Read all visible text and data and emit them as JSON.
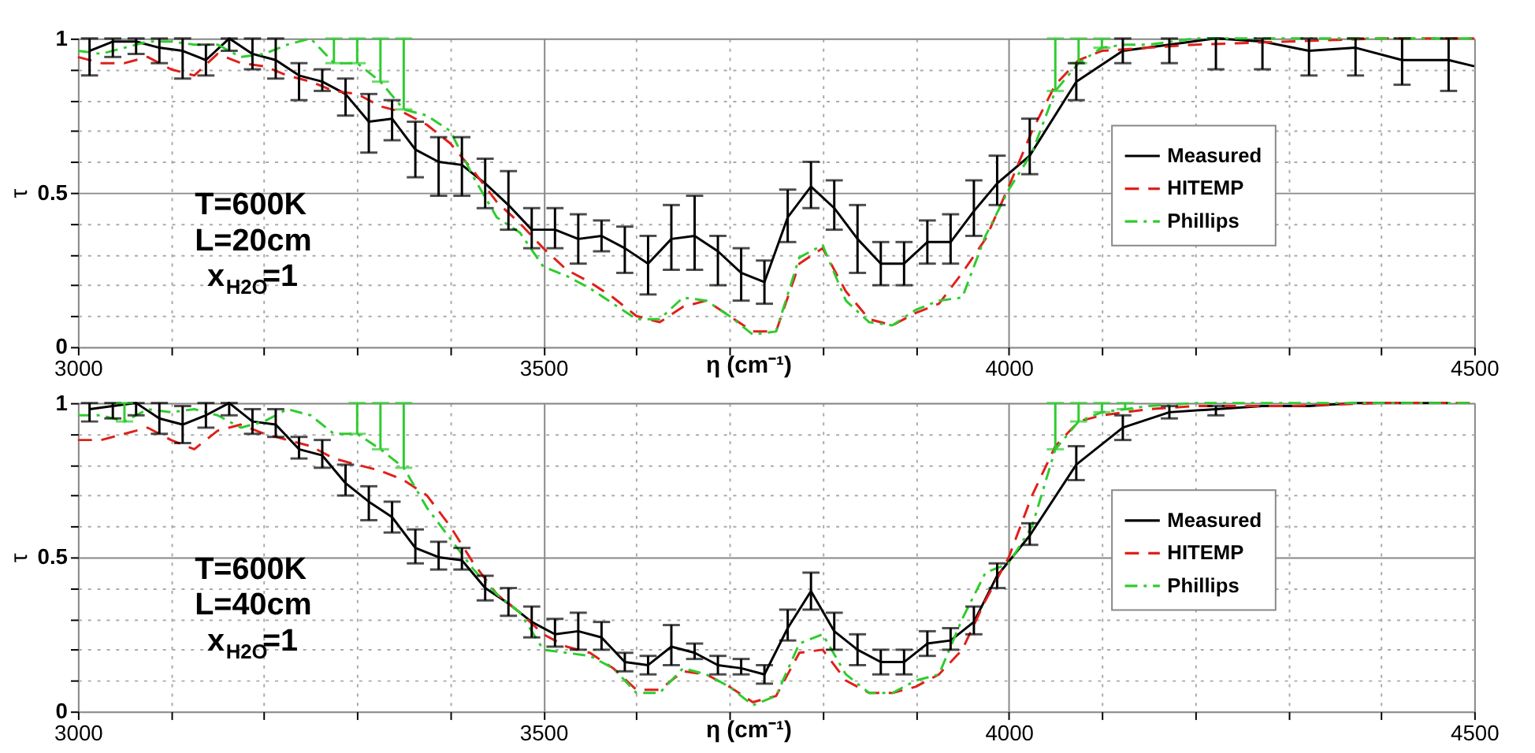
{
  "chart_data": [
    {
      "type": "line",
      "xlabel": "η (cm⁻¹)",
      "ylabel": "τ",
      "xlim": [
        3000,
        4500
      ],
      "ylim": [
        0,
        1
      ],
      "xticks": [
        3000,
        {
          "value": 3100,
          "label": null
        },
        {
          "value": 3200,
          "label": null
        },
        {
          "value": 3300,
          "label": null
        },
        {
          "value": 3400,
          "label": null
        },
        3500,
        {
          "value": 3600,
          "label": null
        },
        {
          "value": 3700,
          "label": null
        },
        {
          "value": 3800,
          "label": null
        },
        {
          "value": 3900,
          "label": null
        },
        4000,
        {
          "value": 4100,
          "label": null
        },
        {
          "value": 4200,
          "label": null
        },
        {
          "value": 4300,
          "label": null
        },
        {
          "value": 4400,
          "label": null
        },
        4500
      ],
      "yticks": [
        0,
        {
          "value": 0.1,
          "label": null
        },
        {
          "value": 0.2,
          "label": null
        },
        {
          "value": 0.3,
          "label": null
        },
        {
          "value": 0.4,
          "label": null
        },
        0.5,
        {
          "value": 0.6,
          "label": null
        },
        {
          "value": 0.7,
          "label": null
        },
        {
          "value": 0.8,
          "label": null
        },
        {
          "value": 0.9,
          "label": null
        },
        1
      ],
      "grid": true,
      "legend": "right",
      "marker": "none",
      "annotations": [
        "T=600K",
        "L=20cm",
        "x$_{H2O}$=1"
      ],
      "series": [
        {
          "name": "Measured",
          "color": "#000000",
          "line_style": "solid",
          "x": [
            3012.5,
            3037.5,
            3062.5,
            3087.5,
            3112.5,
            3137.5,
            3162.5,
            3187.5,
            3212.5,
            3237.5,
            3262.5,
            3287.5,
            3312.5,
            3337.5,
            3362.5,
            3387.5,
            3412.5,
            3437.5,
            3462.5,
            3487.5,
            3512.5,
            3537.5,
            3562.5,
            3587.5,
            3612.5,
            3637.5,
            3662.5,
            3687.5,
            3712.5,
            3737.5,
            3762.5,
            3787.5,
            3812.5,
            3837.5,
            3862.5,
            3887.5,
            3912.5,
            3937.5,
            3962.5,
            3987.5,
            4022.5,
            4072.5,
            4122.5,
            4172.5,
            4222.5,
            4272.5,
            4322.5,
            4372.5,
            4422.5,
            4472.5,
            4500
          ],
          "values": [
            0.96,
            0.99,
            0.99,
            0.97,
            0.96,
            0.93,
            1.0,
            0.95,
            0.93,
            0.88,
            0.86,
            0.82,
            0.73,
            0.74,
            0.64,
            0.6,
            0.59,
            0.53,
            0.46,
            0.38,
            0.38,
            0.35,
            0.36,
            0.32,
            0.27,
            0.35,
            0.36,
            0.31,
            0.24,
            0.21,
            0.42,
            0.52,
            0.45,
            0.35,
            0.27,
            0.27,
            0.34,
            0.34,
            0.44,
            0.53,
            0.62,
            0.86,
            0.96,
            0.98,
            1.0,
            0.99,
            0.96,
            0.97,
            0.93,
            0.93,
            0.91
          ],
          "errors": [
            [
              0.88,
              1.0
            ],
            [
              0.94,
              1.0
            ],
            [
              0.95,
              1.0
            ],
            [
              0.92,
              1.0
            ],
            [
              0.87,
              1.0
            ],
            [
              0.88,
              0.98
            ],
            [
              0.96,
              1.0
            ],
            [
              0.9,
              1.0
            ],
            [
              0.87,
              1.0
            ],
            [
              0.8,
              0.92
            ],
            [
              0.83,
              0.9
            ],
            [
              0.75,
              0.87
            ],
            [
              0.63,
              0.82
            ],
            [
              0.67,
              0.8
            ],
            [
              0.55,
              0.73
            ],
            [
              0.49,
              0.68
            ],
            [
              0.49,
              0.68
            ],
            [
              0.45,
              0.61
            ],
            [
              0.38,
              0.57
            ],
            [
              0.32,
              0.45
            ],
            [
              0.32,
              0.45
            ],
            [
              0.27,
              0.43
            ],
            [
              0.31,
              0.41
            ],
            [
              0.24,
              0.39
            ],
            [
              0.17,
              0.36
            ],
            [
              0.25,
              0.46
            ],
            [
              0.25,
              0.49
            ],
            [
              0.2,
              0.36
            ],
            [
              0.15,
              0.32
            ],
            [
              0.14,
              0.28
            ],
            [
              0.34,
              0.51
            ],
            [
              0.45,
              0.6
            ],
            [
              0.38,
              0.54
            ],
            [
              0.24,
              0.46
            ],
            [
              0.2,
              0.34
            ],
            [
              0.2,
              0.34
            ],
            [
              0.27,
              0.41
            ],
            [
              0.27,
              0.43
            ],
            [
              0.36,
              0.54
            ],
            [
              0.46,
              0.62
            ],
            [
              0.56,
              0.74
            ],
            [
              0.8,
              0.92
            ],
            [
              0.92,
              1.0
            ],
            [
              0.92,
              1.0
            ],
            [
              0.9,
              1.0
            ],
            [
              0.9,
              1.0
            ],
            [
              0.88,
              1.0
            ],
            [
              0.88,
              1.0
            ],
            [
              0.85,
              1.0
            ],
            [
              0.83,
              1.0
            ],
            null
          ]
        },
        {
          "name": "HITEMP",
          "color": "#e0201b",
          "line_style": "dashed",
          "x": [
            3000,
            3025,
            3050,
            3075,
            3100,
            3125,
            3150,
            3175,
            3200,
            3225,
            3250,
            3275,
            3300,
            3325,
            3350,
            3375,
            3400,
            3425,
            3450,
            3475,
            3500,
            3525,
            3550,
            3575,
            3600,
            3625,
            3650,
            3675,
            3700,
            3725,
            3750,
            3775,
            3800,
            3825,
            3850,
            3875,
            3900,
            3925,
            3950,
            3975,
            4000,
            4025,
            4050,
            4075,
            4100,
            4150,
            4200,
            4300,
            4400,
            4500
          ],
          "values": [
            0.94,
            0.92,
            0.92,
            0.94,
            0.9,
            0.88,
            0.95,
            0.92,
            0.91,
            0.88,
            0.86,
            0.83,
            0.82,
            0.78,
            0.76,
            0.72,
            0.66,
            0.57,
            0.47,
            0.4,
            0.32,
            0.25,
            0.21,
            0.16,
            0.1,
            0.08,
            0.13,
            0.15,
            0.1,
            0.05,
            0.05,
            0.27,
            0.32,
            0.18,
            0.09,
            0.07,
            0.11,
            0.14,
            0.24,
            0.35,
            0.52,
            0.7,
            0.85,
            0.93,
            0.96,
            0.97,
            0.98,
            0.99,
            1.0,
            1.0
          ]
        },
        {
          "name": "Phillips",
          "color": "#2ecc2e",
          "line_style": "dashdot",
          "x": [
            3000,
            3025,
            3050,
            3075,
            3100,
            3125,
            3150,
            3175,
            3200,
            3225,
            3250,
            3275,
            3300,
            3325,
            3350,
            3375,
            3400,
            3425,
            3450,
            3475,
            3500,
            3525,
            3550,
            3575,
            3600,
            3625,
            3650,
            3675,
            3700,
            3725,
            3750,
            3775,
            3800,
            3825,
            3850,
            3875,
            3900,
            3925,
            3950,
            3975,
            4000,
            4025,
            4050,
            4075,
            4100,
            4125,
            4150,
            4200,
            4500
          ],
          "values": [
            0.96,
            0.95,
            0.97,
            0.99,
            0.99,
            0.98,
            0.98,
            0.94,
            0.95,
            0.98,
            1.0,
            0.92,
            0.92,
            0.86,
            0.77,
            0.75,
            0.7,
            0.55,
            0.42,
            0.37,
            0.26,
            0.23,
            0.19,
            0.14,
            0.09,
            0.09,
            0.16,
            0.15,
            0.1,
            0.04,
            0.05,
            0.29,
            0.33,
            0.15,
            0.08,
            0.07,
            0.12,
            0.15,
            0.16,
            0.36,
            0.51,
            0.63,
            0.83,
            0.92,
            0.97,
            0.98,
            0.98,
            1.0,
            1.0
          ],
          "errors": [
            null,
            null,
            null,
            null,
            null,
            null,
            null,
            null,
            null,
            null,
            null,
            [
              0.92,
              1.0
            ],
            [
              0.92,
              1.0
            ],
            [
              0.86,
              1.0
            ],
            [
              0.77,
              1.0
            ],
            null,
            null,
            null,
            null,
            null,
            null,
            null,
            null,
            null,
            null,
            null,
            null,
            null,
            null,
            null,
            null,
            null,
            null,
            null,
            null,
            null,
            null,
            null,
            null,
            null,
            null,
            null,
            [
              0.83,
              1.0
            ],
            [
              0.92,
              1.0
            ],
            [
              0.97,
              1.0
            ],
            null,
            null,
            null,
            null
          ]
        }
      ]
    },
    {
      "type": "line",
      "xlabel": "η (cm⁻¹)",
      "ylabel": "τ",
      "xlim": [
        3000,
        4500
      ],
      "ylim": [
        0,
        1
      ],
      "xticks": [
        3000,
        {
          "value": 3100,
          "label": null
        },
        {
          "value": 3200,
          "label": null
        },
        {
          "value": 3300,
          "label": null
        },
        {
          "value": 3400,
          "label": null
        },
        3500,
        {
          "value": 3600,
          "label": null
        },
        {
          "value": 3700,
          "label": null
        },
        {
          "value": 3800,
          "label": null
        },
        {
          "value": 3900,
          "label": null
        },
        4000,
        {
          "value": 4100,
          "label": null
        },
        {
          "value": 4200,
          "label": null
        },
        {
          "value": 4300,
          "label": null
        },
        {
          "value": 4400,
          "label": null
        },
        4500
      ],
      "yticks": [
        0,
        {
          "value": 0.1,
          "label": null
        },
        {
          "value": 0.2,
          "label": null
        },
        {
          "value": 0.3,
          "label": null
        },
        {
          "value": 0.4,
          "label": null
        },
        0.5,
        {
          "value": 0.6,
          "label": null
        },
        {
          "value": 0.7,
          "label": null
        },
        {
          "value": 0.8,
          "label": null
        },
        {
          "value": 0.9,
          "label": null
        },
        1
      ],
      "grid": true,
      "legend": "right",
      "marker": "none",
      "annotations": [
        "T=600K",
        "L=40cm",
        "x$_{H2O}$=1"
      ],
      "series": [
        {
          "name": "Measured",
          "color": "#000000",
          "line_style": "solid",
          "x": [
            3012.5,
            3037.5,
            3062.5,
            3087.5,
            3112.5,
            3137.5,
            3162.5,
            3187.5,
            3212.5,
            3237.5,
            3262.5,
            3287.5,
            3312.5,
            3337.5,
            3362.5,
            3387.5,
            3412.5,
            3437.5,
            3462.5,
            3487.5,
            3512.5,
            3537.5,
            3562.5,
            3587.5,
            3612.5,
            3637.5,
            3662.5,
            3687.5,
            3712.5,
            3737.5,
            3762.5,
            3787.5,
            3812.5,
            3837.5,
            3862.5,
            3887.5,
            3912.5,
            3937.5,
            3962.5,
            3987.5,
            4022.5,
            4072.5,
            4122.5,
            4172.5,
            4222.5,
            4272.5,
            4322.5,
            4372.5,
            4422.5,
            4472.5
          ],
          "values": [
            0.98,
            0.99,
            1.0,
            0.95,
            0.93,
            0.96,
            1.0,
            0.94,
            0.93,
            0.85,
            0.83,
            0.74,
            0.68,
            0.63,
            0.53,
            0.5,
            0.49,
            0.4,
            0.35,
            0.29,
            0.25,
            0.26,
            0.24,
            0.16,
            0.15,
            0.21,
            0.19,
            0.15,
            0.14,
            0.12,
            0.27,
            0.39,
            0.26,
            0.2,
            0.16,
            0.16,
            0.22,
            0.23,
            0.29,
            0.44,
            0.57,
            0.8,
            0.92,
            0.97,
            0.98,
            0.99,
            0.99,
            1.0,
            1.0,
            1.0
          ],
          "errors": [
            [
              0.94,
              1.0
            ],
            [
              0.95,
              1.0
            ],
            [
              0.96,
              1.0
            ],
            [
              0.9,
              1.0
            ],
            [
              0.87,
              0.99
            ],
            [
              0.92,
              1.0
            ],
            [
              0.96,
              1.0
            ],
            [
              0.9,
              0.98
            ],
            [
              0.89,
              0.98
            ],
            [
              0.82,
              0.89
            ],
            [
              0.79,
              0.88
            ],
            [
              0.7,
              0.8
            ],
            [
              0.62,
              0.73
            ],
            [
              0.58,
              0.68
            ],
            [
              0.48,
              0.59
            ],
            [
              0.46,
              0.55
            ],
            [
              0.46,
              0.53
            ],
            [
              0.36,
              0.44
            ],
            [
              0.31,
              0.4
            ],
            [
              0.24,
              0.34
            ],
            [
              0.21,
              0.3
            ],
            [
              0.2,
              0.32
            ],
            [
              0.2,
              0.29
            ],
            [
              0.13,
              0.19
            ],
            [
              0.12,
              0.18
            ],
            [
              0.15,
              0.28
            ],
            [
              0.17,
              0.22
            ],
            [
              0.12,
              0.18
            ],
            [
              0.12,
              0.17
            ],
            [
              0.09,
              0.15
            ],
            [
              0.23,
              0.33
            ],
            [
              0.33,
              0.45
            ],
            [
              0.2,
              0.32
            ],
            [
              0.15,
              0.25
            ],
            [
              0.12,
              0.2
            ],
            [
              0.12,
              0.2
            ],
            [
              0.18,
              0.26
            ],
            [
              0.2,
              0.27
            ],
            [
              0.25,
              0.34
            ],
            [
              0.4,
              0.48
            ],
            [
              0.54,
              0.61
            ],
            [
              0.75,
              0.86
            ],
            [
              0.88,
              0.96
            ],
            [
              0.95,
              0.99
            ],
            [
              0.96,
              0.99
            ],
            null,
            null,
            null,
            null,
            null
          ]
        },
        {
          "name": "HITEMP",
          "color": "#e0201b",
          "line_style": "dashed",
          "x": [
            3000,
            3025,
            3050,
            3075,
            3100,
            3125,
            3150,
            3175,
            3200,
            3225,
            3250,
            3275,
            3300,
            3325,
            3350,
            3375,
            3400,
            3425,
            3450,
            3475,
            3500,
            3525,
            3550,
            3575,
            3600,
            3625,
            3650,
            3675,
            3700,
            3725,
            3750,
            3775,
            3800,
            3825,
            3850,
            3875,
            3900,
            3925,
            3950,
            3975,
            4000,
            4025,
            4050,
            4075,
            4100,
            4150,
            4200,
            4300,
            4400,
            4500
          ],
          "values": [
            0.88,
            0.88,
            0.9,
            0.92,
            0.88,
            0.85,
            0.91,
            0.93,
            0.9,
            0.88,
            0.86,
            0.82,
            0.8,
            0.78,
            0.75,
            0.7,
            0.6,
            0.48,
            0.38,
            0.32,
            0.25,
            0.21,
            0.19,
            0.14,
            0.07,
            0.07,
            0.13,
            0.12,
            0.08,
            0.03,
            0.05,
            0.19,
            0.2,
            0.1,
            0.06,
            0.06,
            0.08,
            0.12,
            0.2,
            0.36,
            0.5,
            0.7,
            0.86,
            0.94,
            0.96,
            0.98,
            0.99,
            0.99,
            1.0,
            1.0
          ]
        },
        {
          "name": "Phillips",
          "color": "#2ecc2e",
          "line_style": "dashdot",
          "x": [
            3000,
            3025,
            3050,
            3075,
            3100,
            3125,
            3150,
            3175,
            3200,
            3225,
            3250,
            3275,
            3300,
            3325,
            3350,
            3375,
            3400,
            3425,
            3450,
            3475,
            3500,
            3525,
            3550,
            3575,
            3600,
            3625,
            3650,
            3675,
            3700,
            3725,
            3750,
            3775,
            3800,
            3825,
            3850,
            3875,
            3900,
            3925,
            3950,
            3975,
            4000,
            4025,
            4050,
            4075,
            4100,
            4125,
            4150,
            4200,
            4500
          ],
          "values": [
            0.96,
            0.96,
            0.94,
            0.98,
            0.97,
            0.98,
            0.96,
            0.92,
            0.94,
            0.98,
            0.96,
            0.9,
            0.9,
            0.85,
            0.79,
            0.66,
            0.56,
            0.46,
            0.38,
            0.32,
            0.2,
            0.19,
            0.18,
            0.14,
            0.06,
            0.06,
            0.14,
            0.12,
            0.08,
            0.02,
            0.05,
            0.22,
            0.25,
            0.12,
            0.06,
            0.06,
            0.1,
            0.12,
            0.3,
            0.45,
            0.48,
            0.6,
            0.85,
            0.94,
            0.97,
            0.98,
            0.99,
            1.0,
            1.0
          ],
          "errors": [
            null,
            null,
            [
              0.94,
              1.0
            ],
            null,
            null,
            null,
            null,
            null,
            null,
            null,
            null,
            null,
            [
              0.9,
              1.0
            ],
            [
              0.85,
              1.0
            ],
            [
              0.79,
              1.0
            ],
            null,
            null,
            null,
            null,
            null,
            null,
            null,
            null,
            null,
            null,
            null,
            null,
            null,
            null,
            null,
            null,
            null,
            null,
            null,
            null,
            null,
            null,
            null,
            null,
            null,
            null,
            null,
            [
              0.85,
              1.0
            ],
            [
              0.94,
              1.0
            ],
            [
              0.97,
              1.0
            ],
            [
              0.98,
              1.0
            ],
            null,
            null,
            null
          ]
        }
      ]
    }
  ]
}
